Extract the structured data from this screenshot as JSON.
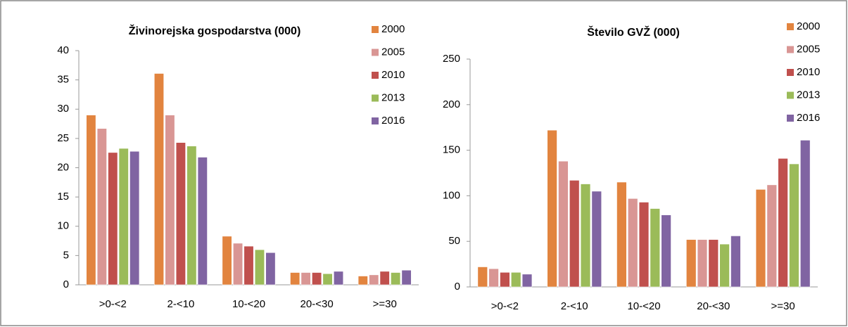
{
  "chart_data": [
    {
      "type": "bar",
      "title": "Živinorejska gospodarstva (000)",
      "categories": [
        ">0-<2",
        "2-<10",
        "10-<20",
        "20-<30",
        ">=30"
      ],
      "series": [
        {
          "name": "2000",
          "color": "#e2843f",
          "values": [
            29,
            36.1,
            8.3,
            2.1,
            1.5
          ]
        },
        {
          "name": "2005",
          "color": "#d99694",
          "values": [
            26.7,
            29,
            7.1,
            2.1,
            1.7
          ]
        },
        {
          "name": "2010",
          "color": "#c0504d",
          "values": [
            22.6,
            24.3,
            6.6,
            2.1,
            2.3
          ]
        },
        {
          "name": "2013",
          "color": "#9bbb59",
          "values": [
            23.3,
            23.7,
            6,
            1.9,
            2.1
          ]
        },
        {
          "name": "2016",
          "color": "#8064a2",
          "values": [
            22.8,
            21.8,
            5.5,
            2.3,
            2.5
          ]
        }
      ],
      "ylim": [
        0,
        40
      ],
      "yticks": [
        0,
        5,
        10,
        15,
        20,
        25,
        30,
        35,
        40
      ],
      "grid": false,
      "legend": "upper right"
    },
    {
      "type": "bar",
      "title": "Število GVŽ (000)",
      "categories": [
        ">0-<2",
        "2-<10",
        "10-<20",
        "20-<30",
        ">=30"
      ],
      "series": [
        {
          "name": "2000",
          "color": "#e2843f",
          "values": [
            22,
            172,
            115,
            52,
            107
          ]
        },
        {
          "name": "2005",
          "color": "#d99694",
          "values": [
            20,
            138,
            97,
            52,
            112
          ]
        },
        {
          "name": "2010",
          "color": "#c0504d",
          "values": [
            16,
            117,
            93,
            52,
            141
          ]
        },
        {
          "name": "2013",
          "color": "#9bbb59",
          "values": [
            16,
            113,
            86,
            47,
            135
          ]
        },
        {
          "name": "2016",
          "color": "#8064a2",
          "values": [
            14,
            105,
            79,
            56,
            161
          ]
        }
      ],
      "ylim": [
        0,
        250
      ],
      "yticks": [
        0,
        50,
        100,
        150,
        200,
        250
      ],
      "grid": false,
      "legend": "upper right"
    }
  ]
}
